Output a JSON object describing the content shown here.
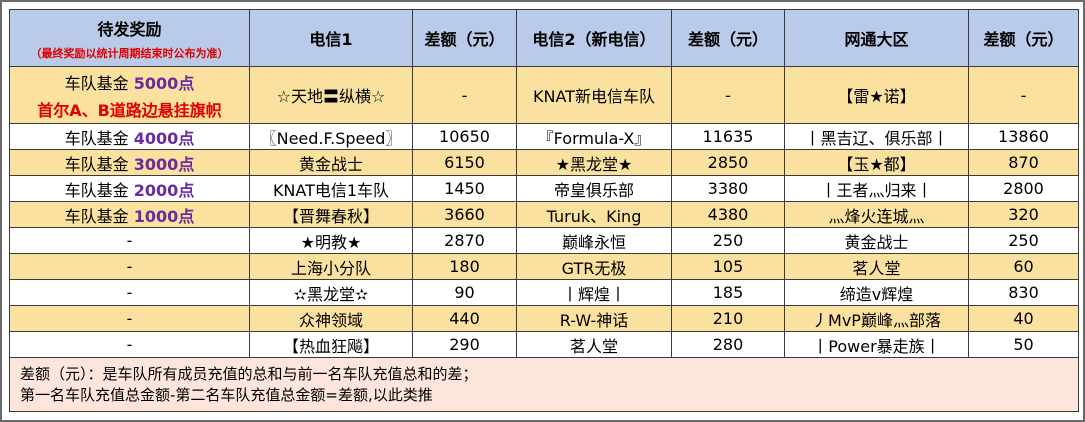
{
  "headers": {
    "reward_title": "待发奖励",
    "reward_subtitle": "（最终奖励以统计周期结束时公布为准）",
    "col_telecom1": "电信1",
    "col_diff1": "差额（元）",
    "col_telecom2": "电信2（新电信）",
    "col_diff2": "差额（元）",
    "col_netcom": "网通大区",
    "col_diff3": "差额（元）"
  },
  "rows": [
    {
      "fund_label": "车队基金",
      "fund_amount": "5000点",
      "flag": "首尔A、B道路边悬挂旗帜",
      "t1": "☆天地〓纵横☆",
      "d1": "-",
      "t2": "KNAT新电信车队",
      "d2": "-",
      "nc": "【雷★诺】",
      "d3": "-"
    },
    {
      "fund_label": "车队基金",
      "fund_amount": "4000点",
      "flag": "",
      "t1": "〖Need.F.Speed〗",
      "d1": "10650",
      "t2": "『Formula-X』",
      "d2": "11635",
      "nc": "丨黑吉辽、俱乐部丨",
      "d3": "13860"
    },
    {
      "fund_label": "车队基金",
      "fund_amount": "3000点",
      "flag": "",
      "t1": "黄金战士",
      "d1": "6150",
      "t2": "★黑龙堂★",
      "d2": "2850",
      "nc": "【玉★都】",
      "d3": "870"
    },
    {
      "fund_label": "车队基金",
      "fund_amount": "2000点",
      "flag": "",
      "t1": "KNAT电信1车队",
      "d1": "1450",
      "t2": "帝皇俱乐部",
      "d2": "3380",
      "nc": "丨王者灬归来丨",
      "d3": "2800"
    },
    {
      "fund_label": "车队基金",
      "fund_amount": "1000点",
      "flag": "",
      "t1": "【晋舞春秋】",
      "d1": "3660",
      "t2": "Turuk、King",
      "d2": "4380",
      "nc": "灬烽火连城灬",
      "d3": "320"
    },
    {
      "fund_label": "-",
      "fund_amount": "",
      "flag": "",
      "t1": "★明教★",
      "d1": "2870",
      "t2": "巅峰永恒",
      "d2": "250",
      "nc": "黄金战士",
      "d3": "250"
    },
    {
      "fund_label": "-",
      "fund_amount": "",
      "flag": "",
      "t1": "上海小分队",
      "d1": "180",
      "t2": "GTR无极",
      "d2": "105",
      "nc": "茗人堂",
      "d3": "60"
    },
    {
      "fund_label": "-",
      "fund_amount": "",
      "flag": "",
      "t1": "✫黑龙堂✫",
      "d1": "90",
      "t2": "丨辉煌丨",
      "d2": "185",
      "nc": "缔造v辉煌",
      "d3": "830"
    },
    {
      "fund_label": "-",
      "fund_amount": "",
      "flag": "",
      "t1": "众神领域",
      "d1": "440",
      "t2": "R-W-神话",
      "d2": "210",
      "nc": "丿MvP巅峰灬部落",
      "d3": "40"
    },
    {
      "fund_label": "-",
      "fund_amount": "",
      "flag": "",
      "t1": "【热血狂飚】",
      "d1": "290",
      "t2": "茗人堂",
      "d2": "280",
      "nc": "丨Power暴走族丨",
      "d3": "50"
    }
  ],
  "note": {
    "line1": "差额（元）：是车队所有成员充值的总和与前一名车队充值总和的差；",
    "line2": "第一名车队充值总金额-第二名车队充值总金额=差额,以此类推"
  }
}
